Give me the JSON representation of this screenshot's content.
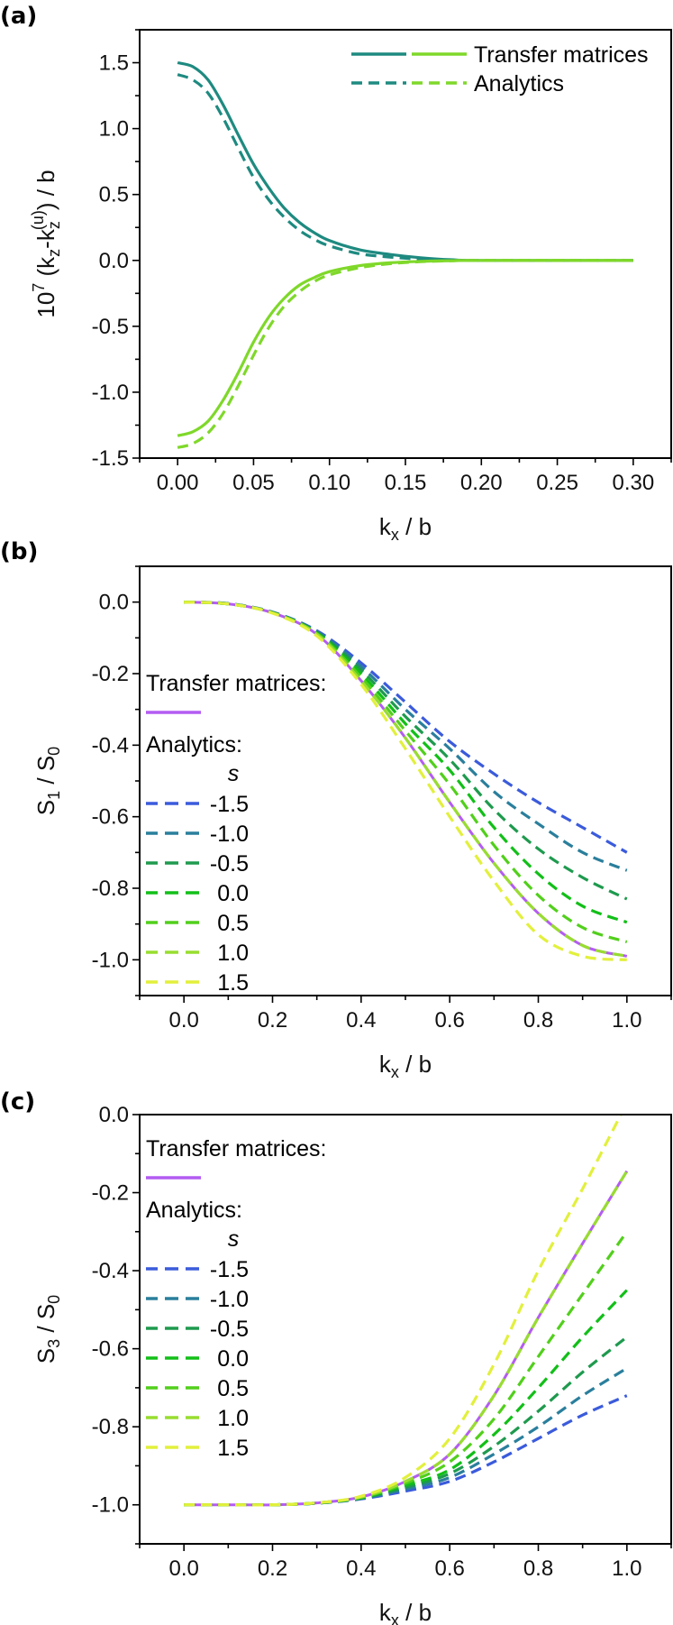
{
  "chart_data": [
    {
      "panel_label": "(a)",
      "type": "line",
      "xlabel": {
        "main": "k",
        "sub": "x",
        "rest": " / b"
      },
      "ylabel": {
        "p1": "10",
        "p1_sup": "7",
        "p2": "  (k",
        "p2_sub": "z",
        "p3": "-k",
        "p3_sub": "z",
        "p3_sup": "(u)",
        "p4": ") / b"
      },
      "xlim": [
        -0.025,
        0.325
      ],
      "ylim": [
        -1.5,
        1.75
      ],
      "xticks": [
        "0.00",
        "0.05",
        "0.10",
        "0.15",
        "0.20",
        "0.25",
        "0.30"
      ],
      "yticks": [
        "-1.5",
        "-1.0",
        "-0.5",
        "0.0",
        "0.5",
        "1.0",
        "1.5"
      ],
      "minor_xtick_step": 0.025,
      "minor_ytick_step": 0.25,
      "grid": false,
      "legend": {
        "placement": "top-right",
        "entries": [
          {
            "label": "Transfer matrices",
            "style": "solid",
            "colors": [
              "#1e8a80",
              "#7fd82a"
            ]
          },
          {
            "label": "Analytics",
            "style": "dashed",
            "colors": [
              "#1e8a80",
              "#7fd82a"
            ]
          }
        ]
      },
      "x": [
        0,
        0.01,
        0.02,
        0.03,
        0.04,
        0.05,
        0.06,
        0.07,
        0.08,
        0.09,
        0.1,
        0.12,
        0.14,
        0.16,
        0.18,
        0.2,
        0.3
      ],
      "series": [
        {
          "legend": "Transfer matrices",
          "style": "solid",
          "color": "#1e8a80",
          "y": [
            1.5,
            1.47,
            1.37,
            1.18,
            0.95,
            0.73,
            0.55,
            0.4,
            0.29,
            0.21,
            0.15,
            0.08,
            0.045,
            0.02,
            0.005,
            0,
            0
          ]
        },
        {
          "legend": "Analytics",
          "style": "dashed",
          "color": "#1e8a80",
          "y": [
            1.41,
            1.37,
            1.27,
            1.08,
            0.85,
            0.63,
            0.46,
            0.33,
            0.23,
            0.16,
            0.11,
            0.05,
            0.025,
            0.01,
            0.003,
            0,
            0
          ]
        },
        {
          "legend": "Transfer matrices",
          "style": "solid",
          "color": "#7fd82a",
          "y": [
            -1.33,
            -1.3,
            -1.22,
            -1.06,
            -0.85,
            -0.62,
            -0.43,
            -0.29,
            -0.19,
            -0.13,
            -0.085,
            -0.04,
            -0.018,
            -0.007,
            -0.002,
            0,
            0
          ]
        },
        {
          "legend": "Analytics",
          "style": "dashed",
          "color": "#7fd82a",
          "y": [
            -1.42,
            -1.39,
            -1.31,
            -1.16,
            -0.95,
            -0.72,
            -0.51,
            -0.35,
            -0.24,
            -0.16,
            -0.11,
            -0.055,
            -0.025,
            -0.01,
            -0.003,
            0,
            0
          ]
        }
      ]
    },
    {
      "panel_label": "(b)",
      "type": "line",
      "xlabel": {
        "main": "k",
        "sub": "x",
        "rest": " / b"
      },
      "ylabel": {
        "main": "S",
        "sub": "1",
        "mid": "  /  S",
        "sub2": "0"
      },
      "xlim": [
        -0.1,
        1.1
      ],
      "ylim": [
        -1.1,
        0.1
      ],
      "xticks": [
        "0.0",
        "0.2",
        "0.4",
        "0.6",
        "0.8",
        "1.0"
      ],
      "yticks": [
        "-1.0",
        "-0.8",
        "-0.6",
        "-0.4",
        "-0.2",
        "0.0"
      ],
      "minor_xtick_step": 0.1,
      "minor_ytick_step": 0.1,
      "grid": false,
      "legend": {
        "placement": "left",
        "tm_header": "Transfer matrices:",
        "an_header": "Analytics:",
        "param": "s",
        "tm_color": "#b35cf2",
        "entries": [
          {
            "label": "-1.5",
            "color": "#3b5bdb"
          },
          {
            "label": "-1.0",
            "color": "#2a7f9c"
          },
          {
            "label": "-0.5",
            "color": "#1f9a4e"
          },
          {
            "label": "0.0",
            "color": "#12bf18"
          },
          {
            "label": "0.5",
            "color": "#52cf1c"
          },
          {
            "label": "1.0",
            "color": "#98dd30"
          },
          {
            "label": "1.5",
            "color": "#e2f03c"
          }
        ]
      },
      "x": [
        0,
        0.1,
        0.2,
        0.3,
        0.4,
        0.5,
        0.6,
        0.7,
        0.8,
        0.9,
        1.0
      ],
      "transfer_matrices": {
        "color": "#b35cf2",
        "y": [
          0,
          -0.005,
          -0.03,
          -0.09,
          -0.22,
          -0.38,
          -0.56,
          -0.73,
          -0.87,
          -0.96,
          -0.99
        ]
      },
      "series": [
        {
          "s": "-1.5",
          "color": "#3b5bdb",
          "y": [
            0,
            -0.004,
            -0.028,
            -0.08,
            -0.17,
            -0.28,
            -0.39,
            -0.48,
            -0.56,
            -0.63,
            -0.7
          ]
        },
        {
          "s": "-1.0",
          "color": "#2a7f9c",
          "y": [
            0,
            -0.004,
            -0.028,
            -0.082,
            -0.18,
            -0.3,
            -0.41,
            -0.53,
            -0.62,
            -0.7,
            -0.75
          ]
        },
        {
          "s": "-0.5",
          "color": "#1f9a4e",
          "y": [
            0,
            -0.005,
            -0.029,
            -0.085,
            -0.19,
            -0.32,
            -0.44,
            -0.58,
            -0.69,
            -0.77,
            -0.83
          ]
        },
        {
          "s": "0.0",
          "color": "#12bf18",
          "y": [
            0,
            -0.005,
            -0.03,
            -0.087,
            -0.2,
            -0.34,
            -0.47,
            -0.63,
            -0.76,
            -0.85,
            -0.895
          ]
        },
        {
          "s": "0.5",
          "color": "#52cf1c",
          "y": [
            0,
            -0.005,
            -0.03,
            -0.088,
            -0.21,
            -0.36,
            -0.51,
            -0.68,
            -0.82,
            -0.91,
            -0.95
          ]
        },
        {
          "s": "1.0",
          "color": "#98dd30",
          "y": [
            0,
            -0.005,
            -0.03,
            -0.09,
            -0.22,
            -0.38,
            -0.56,
            -0.73,
            -0.87,
            -0.96,
            -0.99
          ]
        },
        {
          "s": "1.5",
          "color": "#e2f03c",
          "y": [
            0,
            -0.005,
            -0.031,
            -0.095,
            -0.23,
            -0.41,
            -0.6,
            -0.78,
            -0.93,
            -0.99,
            -1.0
          ]
        }
      ]
    },
    {
      "panel_label": "(c)",
      "type": "line",
      "xlabel": {
        "main": "k",
        "sub": "x",
        "rest": " / b"
      },
      "ylabel": {
        "main": "S",
        "sub": "3",
        "mid": "  /  S",
        "sub2": "0"
      },
      "xlim": [
        -0.1,
        1.1
      ],
      "ylim": [
        -1.1,
        0.0
      ],
      "xticks": [
        "0.0",
        "0.2",
        "0.4",
        "0.6",
        "0.8",
        "1.0"
      ],
      "yticks": [
        "-1.0",
        "-0.8",
        "-0.6",
        "-0.4",
        "-0.2",
        "0.0"
      ],
      "minor_xtick_step": 0.1,
      "minor_ytick_step": 0.1,
      "grid": false,
      "legend": {
        "placement": "top-left",
        "tm_header": "Transfer matrices:",
        "an_header": "Analytics:",
        "param": "s",
        "tm_color": "#b35cf2",
        "entries": [
          {
            "label": "-1.5",
            "color": "#3b5bdb"
          },
          {
            "label": "-1.0",
            "color": "#2a7f9c"
          },
          {
            "label": "-0.5",
            "color": "#1f9a4e"
          },
          {
            "label": "0.0",
            "color": "#12bf18"
          },
          {
            "label": "0.5",
            "color": "#52cf1c"
          },
          {
            "label": "1.0",
            "color": "#98dd30"
          },
          {
            "label": "1.5",
            "color": "#e2f03c"
          }
        ]
      },
      "x": [
        0,
        0.1,
        0.2,
        0.3,
        0.4,
        0.5,
        0.6,
        0.7,
        0.8,
        0.9,
        1.0
      ],
      "transfer_matrices": {
        "color": "#b35cf2",
        "y": [
          -1,
          -1,
          -1,
          -0.995,
          -0.98,
          -0.94,
          -0.87,
          -0.72,
          -0.52,
          -0.33,
          -0.145
        ]
      },
      "series": [
        {
          "s": "-1.5",
          "color": "#3b5bdb",
          "y": [
            -1,
            -1,
            -1,
            -0.996,
            -0.985,
            -0.965,
            -0.94,
            -0.89,
            -0.83,
            -0.77,
            -0.72
          ]
        },
        {
          "s": "-1.0",
          "color": "#2a7f9c",
          "y": [
            -1,
            -1,
            -1,
            -0.996,
            -0.984,
            -0.96,
            -0.93,
            -0.87,
            -0.8,
            -0.72,
            -0.65
          ]
        },
        {
          "s": "-0.5",
          "color": "#1f9a4e",
          "y": [
            -1,
            -1,
            -1,
            -0.996,
            -0.983,
            -0.955,
            -0.92,
            -0.85,
            -0.76,
            -0.66,
            -0.57
          ]
        },
        {
          "s": "0.0",
          "color": "#12bf18",
          "y": [
            -1,
            -1,
            -1,
            -0.995,
            -0.982,
            -0.95,
            -0.91,
            -0.82,
            -0.7,
            -0.57,
            -0.45
          ]
        },
        {
          "s": "0.5",
          "color": "#52cf1c",
          "y": [
            -1,
            -1,
            -1,
            -0.995,
            -0.981,
            -0.945,
            -0.89,
            -0.78,
            -0.62,
            -0.46,
            -0.3
          ]
        },
        {
          "s": "1.0",
          "color": "#98dd30",
          "y": [
            -1,
            -1,
            -1,
            -0.995,
            -0.98,
            -0.94,
            -0.87,
            -0.72,
            -0.52,
            -0.33,
            -0.145
          ]
        },
        {
          "s": "1.5",
          "color": "#e2f03c",
          "y": [
            -1,
            -1,
            -1,
            -0.995,
            -0.978,
            -0.93,
            -0.83,
            -0.64,
            -0.4,
            -0.19,
            0.03
          ]
        }
      ]
    }
  ]
}
